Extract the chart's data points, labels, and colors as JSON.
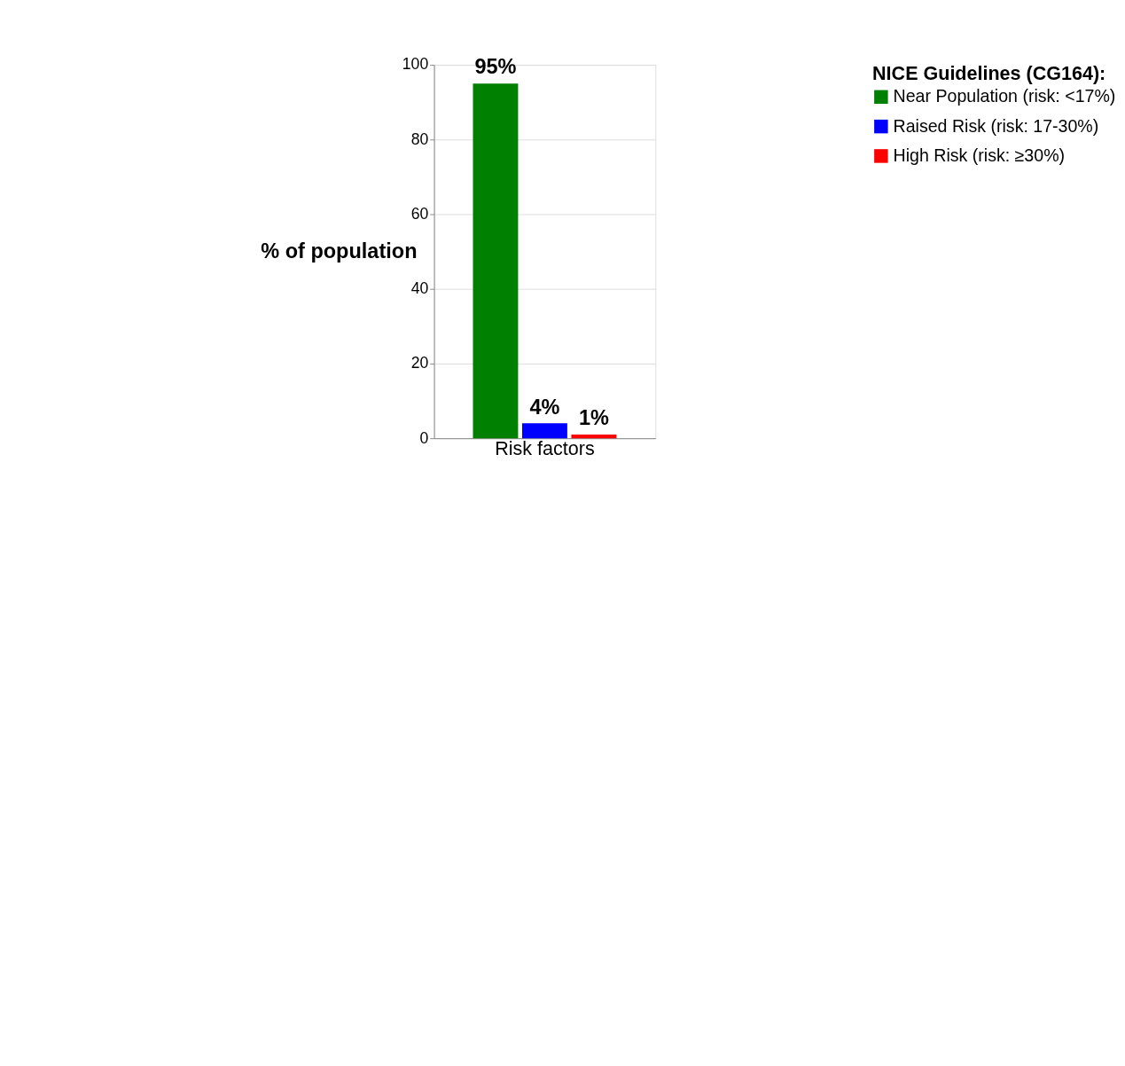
{
  "chart_data": {
    "type": "bar",
    "ylabel": "% of population",
    "legend_title": "NICE Guidelines (CG164):",
    "categories": [
      "Risk factors"
    ],
    "series": [
      {
        "name": "Near Population (risk: <17%)",
        "color": "#008000",
        "values": [
          95
        ],
        "value_labels": [
          "95%"
        ]
      },
      {
        "name": "Raised Risk (risk: 17-30%)",
        "color": "#0000ff",
        "values": [
          4
        ],
        "value_labels": [
          "4%"
        ]
      },
      {
        "name": "High Risk (risk: ≥30%)",
        "color": "#ff0000",
        "values": [
          1
        ],
        "value_labels": [
          "1%"
        ]
      }
    ],
    "ylim": [
      0,
      100
    ],
    "yticks": [
      0,
      20,
      40,
      60,
      80,
      100
    ],
    "grid": "y",
    "legend": "right"
  }
}
